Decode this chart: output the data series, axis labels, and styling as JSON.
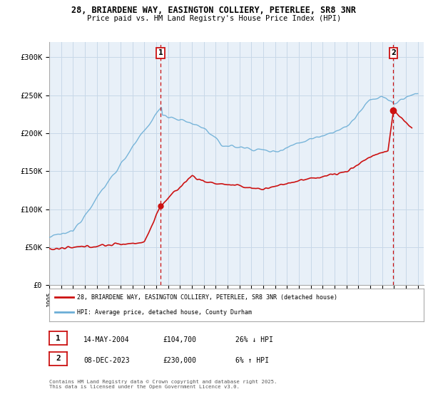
{
  "title_line1": "28, BRIARDENE WAY, EASINGTON COLLIERY, PETERLEE, SR8 3NR",
  "title_line2": "Price paid vs. HM Land Registry's House Price Index (HPI)",
  "ylim": [
    0,
    320000
  ],
  "xlim_start": 1995.0,
  "xlim_end": 2026.5,
  "hpi_color": "#6baed6",
  "price_color": "#cc1111",
  "marker1_date": 2004.37,
  "marker2_date": 2023.94,
  "marker1_price": 104700,
  "marker2_price": 230000,
  "marker1_label": "14-MAY-2004",
  "marker1_amount": "£104,700",
  "marker1_hpi": "26% ↓ HPI",
  "marker2_label": "08-DEC-2023",
  "marker2_amount": "£230,000",
  "marker2_hpi": "6% ↑ HPI",
  "legend_label1": "28, BRIARDENE WAY, EASINGTON COLLIERY, PETERLEE, SR8 3NR (detached house)",
  "legend_label2": "HPI: Average price, detached house, County Durham",
  "footer": "Contains HM Land Registry data © Crown copyright and database right 2025.\nThis data is licensed under the Open Government Licence v3.0.",
  "yticks": [
    0,
    50000,
    100000,
    150000,
    200000,
    250000,
    300000
  ],
  "ytick_labels": [
    "£0",
    "£50K",
    "£100K",
    "£150K",
    "£200K",
    "£250K",
    "£300K"
  ],
  "xticks": [
    1995,
    1996,
    1997,
    1998,
    1999,
    2000,
    2001,
    2002,
    2003,
    2004,
    2005,
    2006,
    2007,
    2008,
    2009,
    2010,
    2011,
    2012,
    2013,
    2014,
    2015,
    2016,
    2017,
    2018,
    2019,
    2020,
    2021,
    2022,
    2023,
    2024,
    2025,
    2026
  ],
  "background_color": "#ffffff",
  "plot_bg_color": "#e8f0f8",
  "grid_color": "#c8d8e8"
}
